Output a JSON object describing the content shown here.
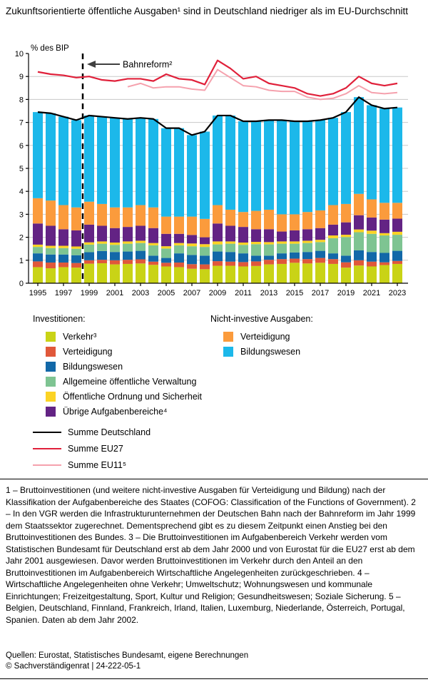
{
  "title": "Zukunftsorientierte öffentliche Ausgaben¹ sind in Deutschland niedriger als im EU-Durchschnitt",
  "chart": {
    "y_axis_label": "% des BIP",
    "annotation_label": "Bahnreform²",
    "grid_color": "#c8c8c8",
    "legend": {
      "investitionen_header": "Investitionen:",
      "nicht_investive_header": "Nicht-investive Ausgaben:",
      "investitionen": [
        {
          "label": "Verkehr³",
          "color": "#c9d316"
        },
        {
          "label": "Verteidigung",
          "color": "#e0583a"
        },
        {
          "label": "Bildungswesen",
          "color": "#1268a8"
        },
        {
          "label": "Allgemeine öffentliche Verwaltung",
          "color": "#7ec492"
        },
        {
          "label": "Öffentliche Ordnung und Sicherheit",
          "color": "#fbd324"
        },
        {
          "label": "Übrige Aufgabenbereiche⁴",
          "color": "#632384"
        }
      ],
      "nicht_investive": [
        {
          "label": "Verteidigung",
          "color": "#fb9b3c"
        },
        {
          "label": "Bildungswesen",
          "color": "#1cb8ea"
        }
      ],
      "lines": [
        {
          "label": "Summe Deutschland",
          "color": "#000000",
          "width": 2.5
        },
        {
          "label": "Summe EU27",
          "color": "#e0203a",
          "width": 2.5
        },
        {
          "label": "Summe EU11⁵",
          "color": "#f5a1ad",
          "width": 2
        }
      ]
    }
  },
  "chart_data": {
    "type": "stacked-bar+line",
    "title": "Zukunftsorientierte öffentliche Ausgaben sind in Deutschland niedriger als im EU-Durchschnitt",
    "ylabel": "% des BIP",
    "ylim": [
      0,
      10
    ],
    "grid": true,
    "x": [
      1995,
      1996,
      1997,
      1998,
      1999,
      2000,
      2001,
      2002,
      2003,
      2004,
      2005,
      2006,
      2007,
      2008,
      2009,
      2010,
      2011,
      2012,
      2013,
      2014,
      2015,
      2016,
      2017,
      2018,
      2019,
      2020,
      2021,
      2022,
      2023
    ],
    "x_tick_labels": [
      1995,
      1997,
      1999,
      2001,
      2003,
      2005,
      2007,
      2009,
      2011,
      2013,
      2015,
      2017,
      2019,
      2021,
      2023
    ],
    "annotation": {
      "label": "Bahnreform²",
      "x": 1998.5
    },
    "stacked_series": [
      {
        "name": "Investitionen Verkehr³",
        "color": "#c9d316",
        "values": [
          0.7,
          0.65,
          0.7,
          0.68,
          0.85,
          0.87,
          0.82,
          0.84,
          0.86,
          0.8,
          0.73,
          0.7,
          0.63,
          0.61,
          0.76,
          0.76,
          0.73,
          0.75,
          0.82,
          0.84,
          0.89,
          0.86,
          0.89,
          0.84,
          0.68,
          0.77,
          0.73,
          0.79,
          0.84
        ]
      },
      {
        "name": "Investitionen Verteidigung",
        "color": "#e0583a",
        "values": [
          0.25,
          0.25,
          0.2,
          0.2,
          0.15,
          0.15,
          0.18,
          0.18,
          0.18,
          0.14,
          0.16,
          0.2,
          0.2,
          0.21,
          0.2,
          0.18,
          0.19,
          0.2,
          0.2,
          0.21,
          0.18,
          0.19,
          0.21,
          0.21,
          0.23,
          0.23,
          0.21,
          0.12,
          0.13
        ]
      },
      {
        "name": "Investitionen Bildungswesen",
        "color": "#1268a8",
        "values": [
          0.35,
          0.35,
          0.35,
          0.34,
          0.35,
          0.38,
          0.36,
          0.36,
          0.37,
          0.26,
          0.21,
          0.4,
          0.4,
          0.38,
          0.42,
          0.42,
          0.38,
          0.25,
          0.18,
          0.25,
          0.27,
          0.31,
          0.31,
          0.25,
          0.29,
          0.43,
          0.42,
          0.41,
          0.44
        ]
      },
      {
        "name": "Investitionen Allgemeine öffentliche Verwaltung",
        "color": "#7ec492",
        "values": [
          0.28,
          0.28,
          0.28,
          0.28,
          0.33,
          0.32,
          0.31,
          0.34,
          0.34,
          0.45,
          0.41,
          0.35,
          0.38,
          0.38,
          0.31,
          0.36,
          0.37,
          0.5,
          0.49,
          0.42,
          0.38,
          0.39,
          0.38,
          0.66,
          0.81,
          0.79,
          0.79,
          0.76,
          0.7
        ]
      },
      {
        "name": "Investitionen Öffentliche Ordnung und Sicherheit",
        "color": "#fbd324",
        "values": [
          0.1,
          0.1,
          0.1,
          0.1,
          0.1,
          0.1,
          0.1,
          0.1,
          0.1,
          0.1,
          0.1,
          0.1,
          0.12,
          0.12,
          0.13,
          0.1,
          0.1,
          0.1,
          0.1,
          0.1,
          0.1,
          0.1,
          0.1,
          0.12,
          0.1,
          0.12,
          0.14,
          0.1,
          0.13
        ]
      },
      {
        "name": "Investitionen Übrige Aufgabenbereiche⁴",
        "color": "#632384",
        "values": [
          0.92,
          0.87,
          0.72,
          0.7,
          0.77,
          0.68,
          0.63,
          0.63,
          0.65,
          0.65,
          0.54,
          0.4,
          0.37,
          0.3,
          0.78,
          0.68,
          0.68,
          0.55,
          0.56,
          0.43,
          0.48,
          0.5,
          0.51,
          0.47,
          0.54,
          0.62,
          0.57,
          0.59,
          0.57
        ]
      },
      {
        "name": "Nicht-investive Ausgaben Verteidigung",
        "color": "#fb9b3c",
        "values": [
          1.1,
          1.1,
          1.05,
          1.0,
          1.0,
          0.95,
          0.9,
          0.85,
          0.9,
          0.9,
          0.75,
          0.75,
          0.8,
          0.8,
          0.8,
          0.7,
          0.65,
          0.8,
          0.85,
          0.75,
          0.7,
          0.75,
          0.77,
          0.85,
          0.8,
          0.93,
          0.79,
          0.73,
          0.69
        ]
      },
      {
        "name": "Nicht-investive Ausgaben Bildungswesen",
        "color": "#1cb8ea",
        "values": [
          3.75,
          3.8,
          3.85,
          3.8,
          3.75,
          3.8,
          3.9,
          3.85,
          3.8,
          3.85,
          3.85,
          3.85,
          3.55,
          3.8,
          3.9,
          4.1,
          3.95,
          3.9,
          3.9,
          4.1,
          4.05,
          3.95,
          3.93,
          3.8,
          4.0,
          4.21,
          4.1,
          4.1,
          4.15
        ]
      }
    ],
    "line_series": [
      {
        "name": "Summe Deutschland",
        "color": "#000000",
        "width": 2.2,
        "values": [
          7.45,
          7.4,
          7.25,
          7.1,
          7.3,
          7.25,
          7.2,
          7.15,
          7.2,
          7.15,
          6.75,
          6.75,
          6.45,
          6.6,
          7.3,
          7.3,
          7.05,
          7.05,
          7.1,
          7.1,
          7.05,
          7.05,
          7.1,
          7.2,
          7.45,
          8.1,
          7.75,
          7.6,
          7.65
        ]
      },
      {
        "name": "Summe EU27",
        "color": "#e0203a",
        "width": 2.2,
        "values": [
          9.2,
          9.1,
          9.05,
          8.95,
          9.0,
          8.85,
          8.8,
          8.9,
          8.9,
          8.8,
          9.1,
          8.9,
          8.85,
          8.65,
          9.7,
          9.35,
          8.9,
          9.0,
          8.7,
          8.6,
          8.5,
          8.25,
          8.15,
          8.25,
          8.5,
          9.0,
          8.7,
          8.6,
          8.7
        ]
      },
      {
        "name": "Summe EU11⁵",
        "color": "#f5a1ad",
        "width": 2,
        "values": [
          null,
          null,
          null,
          null,
          null,
          null,
          null,
          8.55,
          8.7,
          8.5,
          8.55,
          8.55,
          8.45,
          8.4,
          9.3,
          8.95,
          8.6,
          8.55,
          8.4,
          8.35,
          8.35,
          8.1,
          8.0,
          8.05,
          8.25,
          8.6,
          8.3,
          8.25,
          8.3
        ]
      }
    ]
  },
  "footnotes": "1 – Bruttoinvestitionen (und weitere nicht-investive Ausgaben für Verteidigung und Bildung) nach der Klassifikation der Aufgabenbereiche des Staates (COFOG: Classification of the Functions of Government).  2 – In den VGR werden die Infrastrukturunternehmen der Deutschen Bahn nach der Bahnreform im Jahr 1999 dem Staatssektor zugerechnet. Dementsprechend gibt es zu diesem Zeitpunkt einen Anstieg bei den Bruttoinvestitionen des Bundes.  3 – Die Bruttoinvestitionen im Aufgabenbereich Verkehr werden vom Statistischen Bundesamt für Deutschland erst ab dem Jahr 2000 und von Eurostat für die EU27 erst ab dem Jahr 2001 ausgewiesen. Davor werden Bruttoinvestitionen im Verkehr durch den Anteil an den Bruttoinvestitionen im Aufgabenbereich Wirtschaftliche Angelegenheiten zurückgeschrieben.  4 – Wirtschaftliche Angelegenheiten ohne Verkehr; Umweltschutz; Wohnungswesen und kommunale Einrichtungen; Freizeitgestaltung, Sport, Kultur und Religion; Gesundheitswesen; Soziale Sicherung.  5 – Belgien, Deutschland, Finnland, Frankreich, Irland, Italien, Luxemburg, Niederlande, Österreich, Portugal, Spanien. Daten ab dem Jahr 2002.",
  "sources_line": "Quellen: Eurostat, Statistisches Bundesamt, eigene Berechnungen",
  "copyright_line": "© Sachverständigenrat | 24-222-05-1"
}
